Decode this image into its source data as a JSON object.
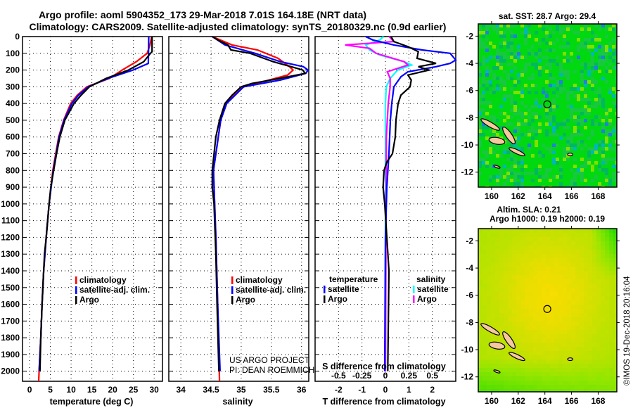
{
  "header": {
    "title_line1": "Argo profile: aoml 5904352_173 29-Mar-2018 7.01S 164.18E (NRT data)",
    "title_line2": "Climatology: CARS2009. Satellite-adjusted climatology: synTS_20180329.nc (0.9d earlier)"
  },
  "credit": {
    "line1": "US ARGO PROJECT",
    "line2": "PI: DEAN ROEMMICH"
  },
  "stamp": "©IMOS 19-Dec-2018 20:16:04",
  "colors": {
    "climatology": "#ff0000",
    "satellite": "#0000ff",
    "argo": "#000000",
    "sal_satellite": "#00ffff",
    "sal_argo": "#ff00ff"
  },
  "chart_data": [
    {
      "type": "line",
      "id": "temperature",
      "xlabel": "temperature (deg C)",
      "ylabel": "",
      "xlim": [
        -1.7,
        32
      ],
      "ylim": [
        0,
        2060
      ],
      "xticks": [
        "0",
        "5",
        "10",
        "15",
        "20",
        "25",
        "30"
      ],
      "xtick_values": [
        0,
        5,
        10,
        15,
        20,
        25,
        30
      ],
      "yticks": [
        "0",
        "100",
        "200",
        "300",
        "400",
        "500",
        "600",
        "700",
        "800",
        "900",
        "1000",
        "1100",
        "1200",
        "1300",
        "1400",
        "1500",
        "1600",
        "1700",
        "1800",
        "1900",
        "2000"
      ],
      "ytick_values": [
        0,
        100,
        200,
        300,
        400,
        500,
        600,
        700,
        800,
        900,
        1000,
        1100,
        1200,
        1300,
        1400,
        1500,
        1600,
        1700,
        1800,
        1900,
        2000
      ],
      "grid": true,
      "legend": [
        "climatology",
        "satellite-adj. clim.",
        "Argo"
      ],
      "legend_position": "lower-right",
      "series": [
        {
          "name": "climatology",
          "color": "#ff0000",
          "depth": [
            0,
            50,
            100,
            150,
            200,
            250,
            300,
            350,
            400,
            500,
            600,
            800,
            1000,
            1200,
            1400,
            1600,
            1800,
            2000,
            2060
          ],
          "values": [
            29.4,
            29.0,
            28.3,
            25.7,
            22.3,
            19.2,
            13.8,
            11.5,
            9.9,
            8.2,
            7.0,
            5.6,
            4.7,
            4.0,
            3.4,
            3.0,
            2.7,
            2.3,
            2.2
          ]
        },
        {
          "name": "satellite-adj. clim.",
          "color": "#0000ff",
          "depth": [
            0,
            160,
            200,
            250,
            300,
            350,
            400,
            500,
            600,
            800,
            1000,
            1200,
            1400,
            1600,
            1800,
            2000
          ],
          "values": [
            28.7,
            28.6,
            24.9,
            18.9,
            14.1,
            11.8,
            10.2,
            8.3,
            7.1,
            5.7,
            4.7,
            4.0,
            3.4,
            3.0,
            2.7,
            2.3
          ]
        },
        {
          "name": "Argo",
          "color": "#000000",
          "depth": [
            0,
            90,
            100,
            150,
            200,
            250,
            300,
            350,
            400,
            500,
            600,
            700,
            800,
            900,
            1000,
            1200,
            1300,
            1400,
            1600,
            1800,
            2000
          ],
          "values": [
            29.5,
            29.5,
            29.1,
            27.5,
            23.8,
            18.4,
            14.4,
            12.4,
            10.7,
            8.5,
            7.3,
            6.5,
            5.8,
            5.1,
            4.7,
            4.0,
            3.6,
            3.4,
            3.0,
            2.7,
            2.5
          ]
        }
      ]
    },
    {
      "type": "line",
      "id": "salinity",
      "xlabel": "salinity",
      "xlim": [
        33.8,
        36.12
      ],
      "ylim": [
        0,
        2060
      ],
      "xticks": [
        "34",
        "34.5",
        "35",
        "35.5",
        "36"
      ],
      "xtick_values": [
        34,
        34.5,
        35,
        35.5,
        36
      ],
      "grid": true,
      "legend": [
        "climatology",
        "satellite-adj. clim.",
        "Argo"
      ],
      "legend_position": "lower-right",
      "series": [
        {
          "name": "climatology",
          "color": "#ff0000",
          "depth": [
            0,
            50,
            80,
            130,
            180,
            200,
            230,
            260,
            300,
            400,
            500,
            800,
            1200,
            1600,
            2060
          ],
          "values": [
            34.52,
            34.85,
            35.27,
            35.61,
            35.8,
            35.86,
            35.77,
            35.46,
            35.04,
            34.74,
            34.66,
            34.54,
            34.58,
            34.61,
            34.64
          ]
        },
        {
          "name": "satellite-adj. clim.",
          "color": "#0000ff",
          "depth": [
            0,
            50,
            100,
            150,
            180,
            200,
            220,
            260,
            300,
            400,
            500,
            800,
            1200,
            1600,
            2000
          ],
          "values": [
            34.52,
            34.73,
            35.23,
            35.65,
            36.03,
            36.11,
            36.07,
            35.65,
            35.04,
            34.76,
            34.66,
            34.54,
            34.58,
            34.61,
            34.65
          ]
        },
        {
          "name": "Argo",
          "color": "#000000",
          "depth": [
            0,
            20,
            50,
            80,
            100,
            150,
            180,
            200,
            220,
            250,
            280,
            300,
            350,
            400,
            500,
            600,
            800,
            900,
            1000,
            1300,
            1600,
            2000
          ],
          "values": [
            34.52,
            34.61,
            34.78,
            34.83,
            35.15,
            35.53,
            35.83,
            36.02,
            36.06,
            35.64,
            35.18,
            35.0,
            34.85,
            34.73,
            34.64,
            34.58,
            34.52,
            34.52,
            34.55,
            34.58,
            34.6,
            34.63
          ]
        }
      ]
    },
    {
      "type": "line",
      "id": "difference",
      "xlabel": "T difference from climatology",
      "xlabel2": "S difference from climatology",
      "xlim": [
        -3,
        3
      ],
      "ylim": [
        0,
        2060
      ],
      "xticks": [
        "-2",
        "-1",
        "0",
        "1",
        "2"
      ],
      "xtick_values": [
        -2,
        -1,
        0,
        1,
        2
      ],
      "sticks": [
        "-0.5",
        "-0.25",
        "0",
        "0.25",
        "0.5"
      ],
      "stick_values": [
        -0.5,
        -0.25,
        0,
        0.25,
        0.5
      ],
      "grid": true,
      "legend_temperature_title": "temperature",
      "legend_salinity_title": "salinity",
      "legend": [
        "satellite",
        "Argo"
      ],
      "series_T": [
        {
          "name": "satellite",
          "color": "#0000ff",
          "depth": [
            0,
            20,
            50,
            80,
            100,
            140,
            160,
            180,
            210,
            240,
            300,
            400,
            500,
            700,
            900,
            1200,
            2000
          ],
          "values": [
            -0.84,
            -0.54,
            0.36,
            1.56,
            2.76,
            3.0,
            2.76,
            2.16,
            0.96,
            0.66,
            0.36,
            0.27,
            0.21,
            0.15,
            0.06,
            0.0,
            -0.03
          ]
        },
        {
          "name": "Argo",
          "color": "#000000",
          "depth": [
            0,
            30,
            60,
            90,
            130,
            160,
            180,
            200,
            230,
            260,
            300,
            350,
            400,
            500,
            600,
            700,
            750,
            800,
            900,
            1000,
            1400,
            2000
          ],
          "values": [
            0.24,
            0.36,
            0.96,
            1.4,
            1.35,
            2.16,
            1.4,
            1.86,
            0.96,
            1.1,
            1.05,
            0.66,
            0.54,
            0.45,
            0.42,
            0.3,
            0.06,
            -0.06,
            -0.1,
            -0.03,
            0.15,
            0.1
          ]
        }
      ],
      "series_S": [
        {
          "name": "satellite",
          "color": "#00ffff",
          "depth": [
            0,
            20,
            50,
            80,
            110,
            150,
            170,
            200,
            250,
            300,
            400,
            2000
          ],
          "values": [
            -0.02,
            -0.06,
            -0.21,
            -0.17,
            -0.06,
            0.2,
            0.28,
            0.13,
            0.05,
            0.01,
            0.0,
            0.0
          ]
        },
        {
          "name": "Argo",
          "color": "#ff00ff",
          "depth": [
            0,
            30,
            50,
            70,
            100,
            150,
            170,
            210,
            250,
            300,
            400,
            600,
            2000
          ],
          "values": [
            0.04,
            0.09,
            -0.43,
            -0.17,
            -0.1,
            0.2,
            0.24,
            0.02,
            0.05,
            0.05,
            0.03,
            0.01,
            0.0
          ]
        }
      ]
    },
    {
      "type": "heatmap",
      "id": "sst-map",
      "title": "sat. SST: 28.7 Argo: 29.4",
      "xlim": [
        159,
        169.4
      ],
      "ylim": [
        -13.1,
        -1.1
      ],
      "xticks": [
        "160",
        "162",
        "164",
        "166",
        "168"
      ],
      "xtick_values": [
        160,
        162,
        164,
        166,
        168
      ],
      "yticks": [
        "-2",
        "-4",
        "-6",
        "-8",
        "-10",
        "-12"
      ],
      "ytick_values": [
        -2,
        -4,
        -6,
        -8,
        -10,
        -12
      ],
      "marker": {
        "lon": 164.18,
        "lat": -7.01
      }
    },
    {
      "type": "heatmap",
      "id": "sla-map",
      "title": "Altim. SLA: 0.21",
      "subtitle": "Argo h1000: 0.19 h2000: 0.19",
      "xlim": [
        159,
        169.4
      ],
      "ylim": [
        -13.1,
        -1.1
      ],
      "xticks": [
        "160",
        "162",
        "164",
        "166",
        "168"
      ],
      "xtick_values": [
        160,
        162,
        164,
        166,
        168
      ],
      "yticks": [
        "-2",
        "-4",
        "-6",
        "-8",
        "-10",
        "-12"
      ],
      "ytick_values": [
        -2,
        -4,
        -6,
        -8,
        -10,
        -12
      ],
      "marker": {
        "lon": 164.18,
        "lat": -7.01
      }
    }
  ]
}
